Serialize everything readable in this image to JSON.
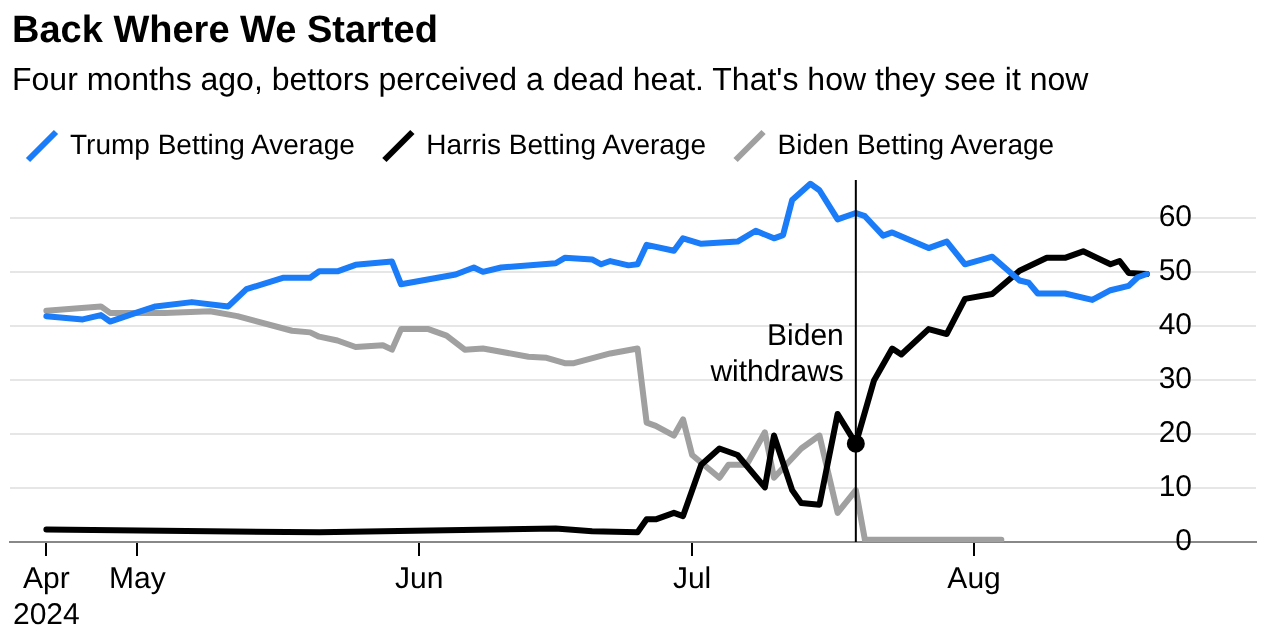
{
  "chart_data": {
    "type": "line",
    "title": "Back Where We Started",
    "subtitle": "Four months ago, bettors perceived a dead heat. That's how they see it now",
    "legend": "top",
    "grid": "y",
    "marker": "none",
    "line_style": "solid",
    "xlim": [
      "2024-04-17",
      "2024-09-01"
    ],
    "xticks": [
      {
        "value": "2024-04-21",
        "label": "Apr 2024"
      },
      {
        "value": "2024-05-01",
        "label": "May"
      },
      {
        "value": "2024-06-01",
        "label": "Jun"
      },
      {
        "value": "2024-07-01",
        "label": "Jul"
      },
      {
        "value": "2024-08-01",
        "label": "Aug"
      }
    ],
    "ylim": [
      0,
      67
    ],
    "yticks": [
      0,
      10,
      20,
      30,
      40,
      50,
      60
    ],
    "ref_lines": [
      {
        "axis": "x",
        "value": "2024-07-19",
        "label": "Biden withdraws",
        "color": "#000000"
      }
    ],
    "series": [
      {
        "name": "Trump Betting Average",
        "color": "#1a7cf8",
        "x": [
          "2024-04-21",
          "2024-04-25",
          "2024-04-27",
          "2024-04-28",
          "2024-05-01",
          "2024-05-03",
          "2024-05-07",
          "2024-05-11",
          "2024-05-13",
          "2024-05-17",
          "2024-05-20",
          "2024-05-21",
          "2024-05-23",
          "2024-05-25",
          "2024-05-29",
          "2024-05-30",
          "2024-06-01",
          "2024-06-05",
          "2024-06-07",
          "2024-06-08",
          "2024-06-10",
          "2024-06-16",
          "2024-06-17",
          "2024-06-20",
          "2024-06-21",
          "2024-06-22",
          "2024-06-24",
          "2024-06-25",
          "2024-06-26",
          "2024-06-29",
          "2024-06-30",
          "2024-07-02",
          "2024-07-06",
          "2024-07-08",
          "2024-07-10",
          "2024-07-11",
          "2024-07-12",
          "2024-07-14",
          "2024-07-15",
          "2024-07-17",
          "2024-07-19",
          "2024-07-20",
          "2024-07-21",
          "2024-07-22",
          "2024-07-23",
          "2024-07-27",
          "2024-07-29",
          "2024-07-31",
          "2024-08-03",
          "2024-08-06",
          "2024-08-07",
          "2024-08-08",
          "2024-08-11",
          "2024-08-14",
          "2024-08-16",
          "2024-08-18",
          "2024-08-19",
          "2024-08-20"
        ],
        "values": [
          41.8,
          41.2,
          42,
          40.8,
          42.5,
          43.6,
          44.4,
          43.6,
          46.8,
          48.9,
          48.9,
          50.1,
          50.1,
          51.3,
          51.9,
          47.7,
          48.3,
          49.5,
          50.8,
          50,
          50.8,
          51.6,
          52.6,
          52.3,
          51.4,
          52,
          51.2,
          51.4,
          55,
          53.9,
          56.2,
          55.2,
          55.6,
          57.6,
          56.2,
          56.8,
          63.3,
          66.3,
          65.1,
          59.7,
          60.9,
          60.3,
          58.5,
          56.7,
          57.3,
          54.4,
          55.6,
          51.4,
          52.8,
          48.4,
          48,
          46,
          46,
          44.8,
          46.6,
          47.4,
          49,
          49.6
        ]
      },
      {
        "name": "Harris Betting Average",
        "color": "#000000",
        "x": [
          "2024-04-21",
          "2024-05-21",
          "2024-06-16",
          "2024-06-20",
          "2024-06-25",
          "2024-06-26",
          "2024-06-27",
          "2024-06-29",
          "2024-06-30",
          "2024-07-02",
          "2024-07-04",
          "2024-07-06",
          "2024-07-09",
          "2024-07-10",
          "2024-07-12",
          "2024-07-13",
          "2024-07-15",
          "2024-07-17",
          "2024-07-19",
          "2024-07-21",
          "2024-07-23",
          "2024-07-24",
          "2024-07-27",
          "2024-07-29",
          "2024-07-31",
          "2024-08-03",
          "2024-08-06",
          "2024-08-09",
          "2024-08-11",
          "2024-08-13",
          "2024-08-16",
          "2024-08-17",
          "2024-08-18",
          "2024-08-20"
        ],
        "values": [
          2.3,
          1.8,
          2.5,
          2,
          1.8,
          4.2,
          4.2,
          5.4,
          4.8,
          14.3,
          17.3,
          16.1,
          10.1,
          19.7,
          9.6,
          7.2,
          6.9,
          23.7,
          18.2,
          29.9,
          35.8,
          34.7,
          39.4,
          38.5,
          45,
          45.9,
          50.2,
          52.6,
          52.6,
          53.8,
          51.4,
          52,
          49.8,
          49.6
        ]
      },
      {
        "name": "Biden Betting Average",
        "color": "#a0a0a0",
        "x": [
          "2024-04-21",
          "2024-04-27",
          "2024-04-28",
          "2024-05-04",
          "2024-05-09",
          "2024-05-12",
          "2024-05-18",
          "2024-05-20",
          "2024-05-21",
          "2024-05-23",
          "2024-05-25",
          "2024-05-28",
          "2024-05-29",
          "2024-05-30",
          "2024-06-02",
          "2024-06-04",
          "2024-06-06",
          "2024-06-08",
          "2024-06-13",
          "2024-06-15",
          "2024-06-17",
          "2024-06-18",
          "2024-06-22",
          "2024-06-25",
          "2024-06-26",
          "2024-06-27",
          "2024-06-29",
          "2024-06-30",
          "2024-07-01",
          "2024-07-04",
          "2024-07-05",
          "2024-07-07",
          "2024-07-09",
          "2024-07-10",
          "2024-07-13",
          "2024-07-15",
          "2024-07-17",
          "2024-07-19",
          "2024-07-20",
          "2024-08-04"
        ],
        "values": [
          42.8,
          43.6,
          42.4,
          42.4,
          42.7,
          41.8,
          39.1,
          38.8,
          38,
          37.3,
          36.1,
          36.4,
          35.6,
          39.4,
          39.4,
          38.2,
          35.6,
          35.8,
          34.3,
          34.1,
          33.1,
          33.1,
          34.9,
          35.8,
          22.1,
          21.5,
          19.7,
          22.7,
          16.1,
          11.9,
          14.3,
          14.3,
          20.3,
          11.9,
          17.3,
          19.7,
          5.4,
          9.6,
          0.4,
          0.4
        ]
      },
      {
        "type": "scatter",
        "marker": "circle",
        "color": "#000000",
        "x": [
          "2024-07-19"
        ],
        "values": [
          18.2
        ]
      }
    ]
  }
}
